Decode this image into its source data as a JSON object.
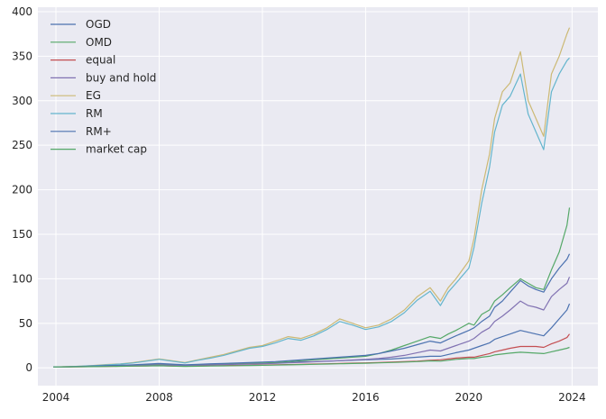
{
  "chart_data": {
    "type": "line",
    "title": "",
    "xlabel": "",
    "ylabel": "",
    "xlim": [
      2003.3,
      2025.0
    ],
    "ylim": [
      -20,
      405
    ],
    "x_ticks": [
      2004,
      2008,
      2012,
      2016,
      2020,
      2024
    ],
    "x_tick_labels": [
      "2004",
      "2008",
      "2012",
      "2016",
      "2020",
      "2024"
    ],
    "y_ticks": [
      0,
      50,
      100,
      150,
      200,
      250,
      300,
      350,
      400
    ],
    "y_tick_labels": [
      "0",
      "50",
      "100",
      "150",
      "200",
      "250",
      "300",
      "350",
      "400"
    ],
    "grid": true,
    "legend_position": "top-left",
    "x": [
      2003.9,
      2004.5,
      2005.0,
      2005.5,
      2006.0,
      2006.5,
      2007.0,
      2007.5,
      2008.0,
      2008.5,
      2009.0,
      2009.5,
      2010.0,
      2010.5,
      2011.0,
      2011.5,
      2012.0,
      2012.5,
      2013.0,
      2013.5,
      2014.0,
      2014.5,
      2015.0,
      2015.5,
      2016.0,
      2016.5,
      2017.0,
      2017.5,
      2018.0,
      2018.5,
      2018.9,
      2019.2,
      2019.5,
      2020.0,
      2020.2,
      2020.5,
      2020.8,
      2021.0,
      2021.3,
      2021.6,
      2022.0,
      2022.3,
      2022.6,
      2022.9,
      2023.2,
      2023.5,
      2023.8,
      2023.9
    ],
    "series": [
      {
        "name": "OGD",
        "color": "#4c72b0",
        "values": [
          1,
          1.2,
          1.5,
          1.8,
          2.2,
          2.5,
          3,
          3.5,
          4,
          3.5,
          3,
          3.3,
          3.8,
          4,
          4.5,
          4.8,
          5,
          5.5,
          6,
          6.8,
          7,
          7.5,
          8,
          8.5,
          9,
          9.5,
          10,
          11,
          12,
          13,
          13,
          15,
          17,
          20,
          22,
          25,
          28,
          32,
          35,
          38,
          42,
          40,
          38,
          36,
          45,
          55,
          65,
          72
        ]
      },
      {
        "name": "OMD",
        "color": "#55a868",
        "values": [
          1,
          1.3,
          1.6,
          2,
          2.4,
          2.8,
          3.2,
          3.8,
          4.2,
          3.6,
          3,
          3.5,
          4,
          4.5,
          5,
          5.2,
          5.5,
          6,
          7,
          8,
          9,
          10,
          11,
          12,
          13,
          16,
          20,
          25,
          30,
          35,
          33,
          38,
          42,
          50,
          48,
          60,
          65,
          75,
          82,
          90,
          100,
          95,
          90,
          88,
          110,
          130,
          160,
          180
        ]
      },
      {
        "name": "equal",
        "color": "#c44e52",
        "values": [
          1,
          1.1,
          1.3,
          1.5,
          1.7,
          1.9,
          2.1,
          2.3,
          2.5,
          2.2,
          2,
          2.2,
          2.4,
          2.6,
          2.8,
          3,
          3.2,
          3.4,
          3.7,
          4,
          4.3,
          4.6,
          5,
          5.3,
          5.6,
          6,
          6.5,
          7,
          7.5,
          8.5,
          9,
          10,
          11,
          12,
          12,
          14,
          16,
          18,
          20,
          22,
          24,
          24,
          24,
          23,
          27,
          30,
          34,
          38
        ]
      },
      {
        "name": "buy and hold",
        "color": "#8172b2",
        "values": [
          1,
          1.2,
          1.4,
          1.7,
          2,
          2.3,
          2.6,
          3,
          3.4,
          3,
          2.6,
          3,
          3.4,
          3.7,
          4,
          4.3,
          4.6,
          5,
          5.6,
          6.2,
          6.8,
          7.4,
          8,
          8.8,
          9.5,
          10.5,
          12,
          14,
          17,
          20,
          19,
          22,
          25,
          30,
          33,
          40,
          45,
          52,
          58,
          65,
          75,
          70,
          68,
          65,
          80,
          88,
          95,
          102
        ]
      },
      {
        "name": "EG",
        "color": "#ccb974",
        "values": [
          1,
          1.4,
          2,
          2.8,
          3.8,
          4.5,
          6,
          8,
          10,
          8,
          6,
          9,
          12,
          15,
          19,
          23,
          25,
          30,
          35,
          33,
          38,
          45,
          55,
          50,
          45,
          48,
          55,
          65,
          80,
          90,
          75,
          90,
          100,
          120,
          145,
          200,
          240,
          280,
          310,
          320,
          355,
          300,
          280,
          260,
          330,
          350,
          375,
          382
        ]
      },
      {
        "name": "RM",
        "color": "#64b5cd",
        "values": [
          1,
          1.3,
          1.9,
          2.6,
          3.5,
          4.3,
          5.5,
          7.5,
          9.5,
          7.5,
          5.5,
          8.5,
          11,
          14,
          18,
          22,
          24,
          28,
          33,
          31,
          36,
          43,
          52,
          48,
          43,
          46,
          52,
          62,
          76,
          86,
          70,
          85,
          95,
          112,
          135,
          185,
          225,
          265,
          295,
          305,
          330,
          285,
          265,
          245,
          310,
          330,
          345,
          348
        ]
      },
      {
        "name": "RM+",
        "color": "#4c72b0",
        "values": [
          1,
          1.3,
          1.7,
          2.1,
          2.6,
          3,
          3.5,
          4.2,
          5,
          4.2,
          3.5,
          4,
          4.6,
          5,
          5.5,
          6,
          6.5,
          7,
          8,
          9,
          10,
          11,
          12,
          13,
          14,
          16,
          19,
          22,
          26,
          30,
          28,
          32,
          36,
          42,
          45,
          52,
          58,
          68,
          75,
          85,
          98,
          92,
          88,
          85,
          100,
          112,
          122,
          128
        ]
      },
      {
        "name": "market cap",
        "color": "#55a868",
        "values": [
          1,
          1.1,
          1.2,
          1.4,
          1.6,
          1.8,
          2,
          2.2,
          2.4,
          2,
          1.7,
          1.9,
          2.1,
          2.3,
          2.5,
          2.7,
          2.9,
          3.1,
          3.4,
          3.7,
          4,
          4.3,
          4.6,
          4.9,
          5.2,
          5.6,
          6,
          6.5,
          7,
          7.8,
          7.5,
          8.5,
          9.5,
          10.5,
          10.5,
          12,
          13,
          14.5,
          15.5,
          16.5,
          17.5,
          17,
          16.5,
          16,
          18,
          20,
          22,
          23
        ]
      }
    ]
  }
}
